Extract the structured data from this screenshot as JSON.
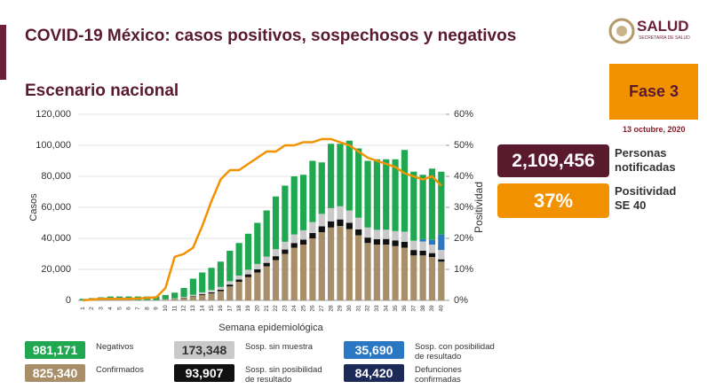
{
  "header": {
    "title": "COVID-19 México: casos positivos, sospechosos y negativos",
    "subtitle": "Escenario nacional",
    "logo": "SALUD",
    "logo_sub": "SECRETARÍA DE SALUD",
    "phase": "Fase 3",
    "date": "13 octubre, 2020"
  },
  "stats": [
    {
      "value": "2,109,456",
      "label": "Personas notificadas"
    },
    {
      "value": "37%",
      "label": "Positividad SE 40"
    }
  ],
  "deaths": {
    "value": "84,420",
    "label": "Defunciones confirmadas",
    "color": "#1b2a57"
  },
  "chart_data": {
    "type": "bar",
    "stacked": true,
    "y_label": "Casos",
    "y2_label": "Positividad",
    "x_label": "Semana epidemiológica",
    "categories": [
      "1",
      "2",
      "3",
      "4",
      "5",
      "6",
      "7",
      "8",
      "9",
      "10",
      "11",
      "12",
      "13",
      "14",
      "15",
      "16",
      "17",
      "18",
      "19",
      "20",
      "21",
      "22",
      "23",
      "24",
      "25",
      "26",
      "27",
      "28",
      "29",
      "30",
      "31",
      "32",
      "33",
      "34",
      "35",
      "36",
      "37",
      "38",
      "39",
      "40"
    ],
    "ylim": [
      0,
      120000
    ],
    "yticks": [
      {
        "value": 0,
        "label": "0"
      },
      {
        "value": 20000,
        "label": "20,000"
      },
      {
        "value": 40000,
        "label": "40,000"
      },
      {
        "value": 60000,
        "label": "60,000"
      },
      {
        "value": 80000,
        "label": "80,000"
      },
      {
        "value": 100000,
        "label": "100,000"
      },
      {
        "value": 120000,
        "label": "120,000"
      }
    ],
    "y2lim": [
      0,
      60
    ],
    "y2ticks": [
      {
        "value": 0,
        "label": "0%"
      },
      {
        "value": 10,
        "label": "10%"
      },
      {
        "value": 20,
        "label": "20%"
      },
      {
        "value": 30,
        "label": "30%"
      },
      {
        "value": 40,
        "label": "40%"
      },
      {
        "value": 50,
        "label": "50%"
      },
      {
        "value": 60,
        "label": "60%"
      }
    ],
    "series": [
      {
        "name": "Confirmados",
        "total": "825,340",
        "color": "#a88f6a",
        "values": [
          50,
          50,
          100,
          100,
          100,
          100,
          100,
          100,
          150,
          400,
          900,
          1500,
          2500,
          3500,
          4500,
          6000,
          9000,
          12000,
          15000,
          18000,
          22000,
          26000,
          30000,
          34000,
          36000,
          40000,
          44000,
          47000,
          48000,
          46000,
          42000,
          37000,
          36000,
          36000,
          35000,
          34000,
          29000,
          29000,
          28000,
          25000
        ]
      },
      {
        "name": "Sosp. sin posibilidad de resultado",
        "total": "93,907",
        "color": "#111111",
        "values": [
          0,
          0,
          0,
          0,
          0,
          0,
          0,
          0,
          0,
          50,
          100,
          200,
          300,
          500,
          700,
          900,
          1200,
          1500,
          1800,
          2000,
          2200,
          2500,
          2800,
          3000,
          3200,
          3500,
          3800,
          4000,
          4200,
          4000,
          3800,
          3500,
          3500,
          3600,
          3700,
          3800,
          3500,
          3000,
          2500,
          1500
        ]
      },
      {
        "name": "Sosp. sin muestra",
        "total": "173,348",
        "color": "#c9c9c9",
        "values": [
          50,
          50,
          100,
          100,
          100,
          100,
          100,
          100,
          100,
          200,
          300,
          500,
          800,
          1200,
          1500,
          1800,
          2200,
          2500,
          3000,
          3500,
          4000,
          4500,
          5000,
          5500,
          6000,
          7000,
          8000,
          8500,
          8500,
          8000,
          7500,
          6500,
          6000,
          6000,
          6000,
          6500,
          6000,
          6000,
          5500,
          6000
        ]
      },
      {
        "name": "Sosp. con posibilidad de resultado",
        "total": "35,690",
        "color": "#2a78c4",
        "values": [
          0,
          0,
          0,
          0,
          0,
          0,
          0,
          0,
          0,
          0,
          0,
          0,
          0,
          0,
          0,
          0,
          0,
          0,
          0,
          0,
          0,
          0,
          0,
          0,
          0,
          0,
          0,
          0,
          0,
          0,
          0,
          0,
          0,
          0,
          0,
          0,
          0,
          1500,
          3000,
          10000
        ]
      },
      {
        "name": "Negativos",
        "total": "981,171",
        "color": "#1fa84f",
        "values": [
          900,
          1400,
          1800,
          2300,
          2300,
          2300,
          2300,
          2300,
          2250,
          2850,
          3700,
          5800,
          10400,
          12800,
          14300,
          16300,
          19600,
          21000,
          23200,
          26500,
          29800,
          34000,
          36200,
          37500,
          35800,
          39500,
          33200,
          41500,
          40300,
          45000,
          44700,
          43000,
          45500,
          45400,
          46300,
          52700,
          44500,
          41500,
          46000,
          40500
        ]
      },
      {
        "type": "line",
        "axis": "y2",
        "color": "#f39200",
        "values": [
          0,
          0.3,
          0.5,
          0.5,
          0.5,
          0.5,
          0.6,
          0.8,
          1,
          4,
          14,
          15,
          17,
          24,
          32,
          39,
          42,
          42,
          44,
          46,
          48,
          48,
          50,
          50,
          51,
          51,
          52,
          52,
          51,
          50,
          48,
          46,
          45,
          44,
          43,
          41,
          40,
          39,
          40,
          37
        ]
      }
    ]
  }
}
